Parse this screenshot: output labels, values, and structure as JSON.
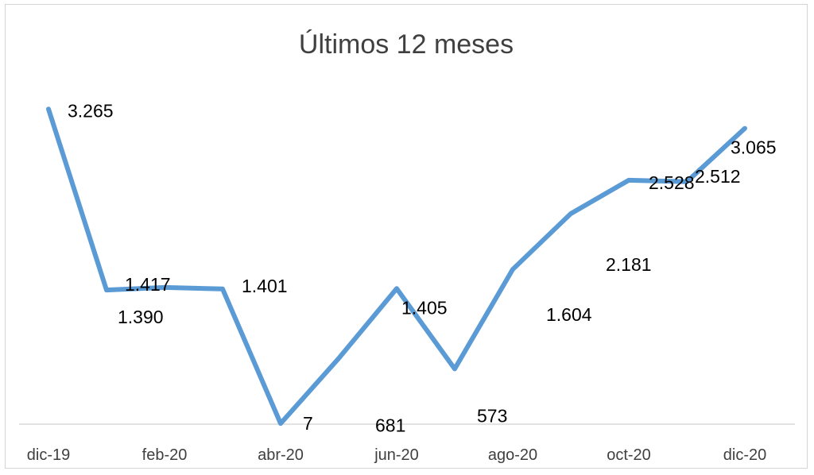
{
  "chart_data": {
    "type": "line",
    "title": "Últimos 12 meses",
    "xlabel": "",
    "ylabel": "",
    "x": [
      "dic-19",
      "ene-20",
      "feb-20",
      "mar-20",
      "abr-20",
      "may-20",
      "jun-20",
      "jul-20",
      "ago-20",
      "sep-20",
      "oct-20",
      "nov-20",
      "dic-20"
    ],
    "x_tick_labels": [
      "dic-19",
      "feb-20",
      "abr-20",
      "jun-20",
      "ago-20",
      "oct-20",
      "dic-20"
    ],
    "values": [
      3265,
      1390,
      1417,
      1401,
      7,
      681,
      1405,
      573,
      1604,
      2181,
      2528,
      2512,
      3065
    ],
    "data_labels": [
      "3.265",
      "1.390",
      "1.417",
      "1.401",
      "7",
      "681",
      "1.405",
      "573",
      "1.604",
      "2.181",
      "2.528",
      "2.512",
      "3.065"
    ],
    "ylim": [
      0,
      3500
    ],
    "grid": false,
    "legend": "none",
    "line_color": "#5b9bd5",
    "axis_color": "#d9d9d9"
  }
}
